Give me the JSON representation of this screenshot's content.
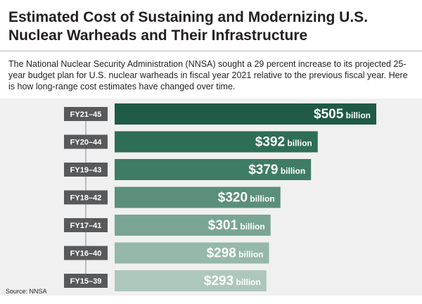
{
  "title": "Estimated Cost of Sustaining and Modernizing U.S. Nuclear Warheads and Their Infrastructure",
  "subtitle": "The National Nuclear Security Administration (NNSA) sought a 29 percent increase to its projected 25-year budget plan for U.S. nuclear warheads in fiscal year 2021 relative to the previous fiscal year. Here is how long-range cost estimates have changed over time.",
  "source": "Source: NNSA",
  "chart_data": {
    "type": "bar",
    "orientation": "horizontal",
    "categories": [
      "FY21–45",
      "FY20–44",
      "FY19–43",
      "FY18–42",
      "FY17–41",
      "FY16–40",
      "FY15–39"
    ],
    "values": [
      505,
      392,
      379,
      320,
      301,
      298,
      293
    ],
    "value_labels": [
      "$505",
      "$392",
      "$379",
      "$320",
      "$301",
      "$298",
      "$293"
    ],
    "unit_label": "billion",
    "bar_colors": [
      "#1e5a45",
      "#2e6e56",
      "#3f7c65",
      "#5b8f7b",
      "#7aa595",
      "#95b8aa",
      "#aec7bd"
    ],
    "label_box_color": "#58595b",
    "grid": false
  }
}
